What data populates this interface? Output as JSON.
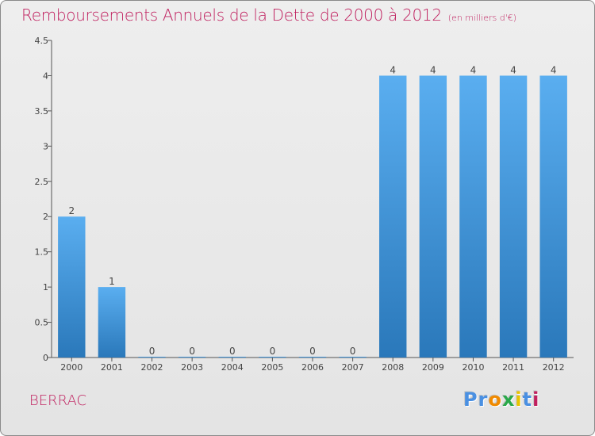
{
  "chart_data": {
    "type": "bar",
    "title": "Remboursements Annuels de la Dette de 2000 à 2012",
    "subtitle": "(en milliers d'€)",
    "categories": [
      "2000",
      "2001",
      "2002",
      "2003",
      "2004",
      "2005",
      "2006",
      "2007",
      "2008",
      "2009",
      "2010",
      "2011",
      "2012"
    ],
    "values": [
      2,
      1,
      0,
      0,
      0,
      0,
      0,
      0,
      4,
      4,
      4,
      4,
      4
    ],
    "ylim": [
      0,
      4.5
    ],
    "yticks": [
      0,
      0.5,
      1,
      1.5,
      2,
      2.5,
      3,
      3.5,
      4,
      4.5
    ],
    "ytick_labels": [
      "0",
      "0.5",
      "1",
      "1.5",
      "2",
      "2.5",
      "3",
      "3.5",
      "4",
      "4.5"
    ],
    "grid": false,
    "bar_color": "#3a8fd6"
  },
  "place": "BERRAC",
  "logo": {
    "letters": [
      "P",
      "r",
      "o",
      "x",
      "i",
      "t",
      "i"
    ],
    "colors": [
      "#4a90e2",
      "#4a90e2",
      "#f08a00",
      "#2aa84a",
      "#e8c400",
      "#4a90e2",
      "#c0205f"
    ]
  },
  "colors": {
    "title": "#c0205f",
    "axis": "#555555"
  }
}
